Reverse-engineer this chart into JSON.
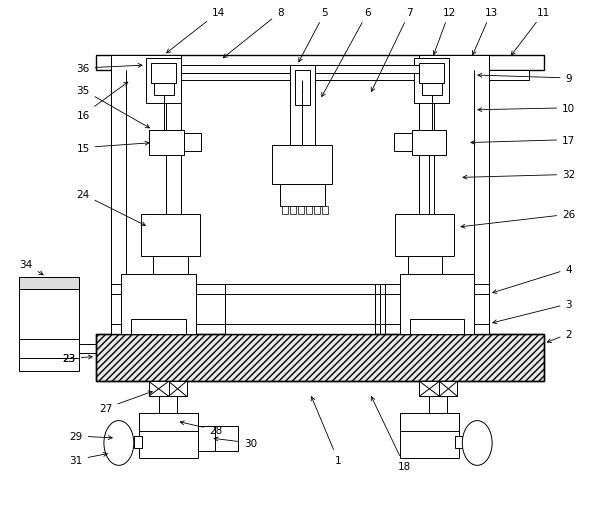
{
  "bg_color": "#ffffff",
  "line_color": "#000000",
  "figsize": [
    6.1,
    5.1
  ],
  "dpi": 100,
  "top_labels": {
    "14": 0.295,
    "8": 0.385,
    "5": 0.455,
    "6": 0.525,
    "7": 0.595,
    "12": 0.66,
    "13": 0.73,
    "11": 0.83
  },
  "right_labels": {
    "9": 0.81,
    "10": 0.775,
    "17": 0.735,
    "32": 0.66,
    "26": 0.62,
    "4": 0.56,
    "3": 0.51,
    "2": 0.475
  },
  "left_labels": {
    "36": 0.825,
    "35": 0.785,
    "16": 0.745,
    "15": 0.7,
    "24": 0.63
  }
}
